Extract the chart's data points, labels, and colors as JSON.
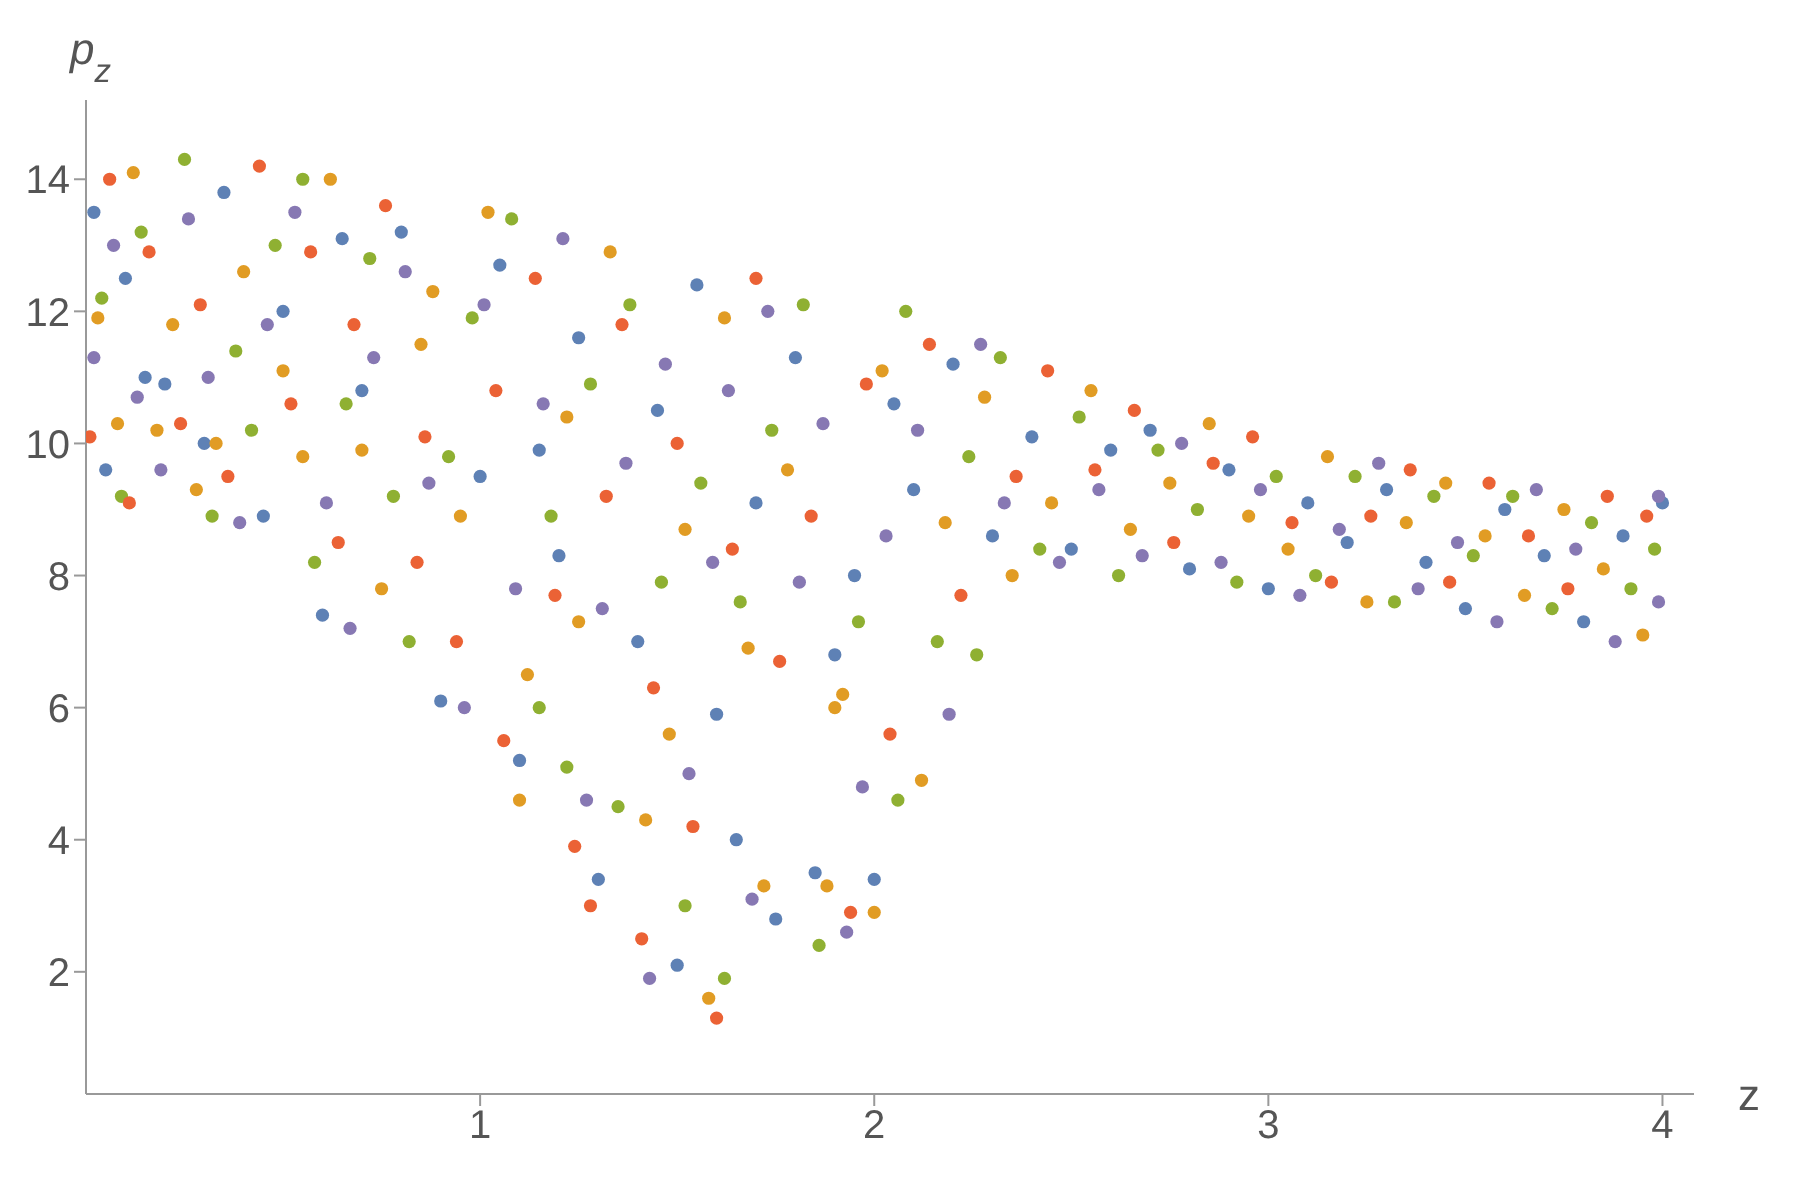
{
  "chart_data": {
    "type": "scatter",
    "xlabel": "z",
    "ylabel": "p$_{z}$",
    "xlim": [
      0,
      4.08
    ],
    "ylim": [
      0.15,
      15.2
    ],
    "xticks": [
      1,
      2,
      3,
      4
    ],
    "yticks": [
      2,
      4,
      6,
      8,
      10,
      12,
      14
    ],
    "grid": false,
    "legend": false,
    "marker": "circle",
    "series": [
      {
        "color": "#5e81b5",
        "x": [
          0.02,
          0.05,
          0.1,
          0.15,
          0.3,
          0.35,
          0.45,
          0.5,
          0.6,
          0.7,
          0.8,
          0.9,
          1.0,
          1.05,
          1.1,
          1.2,
          1.25,
          1.3,
          1.4,
          1.45,
          1.5,
          1.55,
          1.6,
          1.7,
          1.75,
          1.8,
          1.9,
          1.95,
          2.0,
          2.05,
          2.1,
          2.2,
          2.3,
          2.4,
          2.5,
          2.6,
          2.7,
          2.8,
          2.9,
          3.0,
          3.1,
          3.2,
          3.3,
          3.4,
          3.5,
          3.6,
          3.7,
          3.8,
          3.9,
          4.0,
          0.2,
          0.65,
          1.15,
          1.65,
          1.85
        ],
        "values": [
          13.5,
          9.6,
          12.5,
          11.0,
          10.0,
          13.8,
          8.9,
          12.0,
          7.4,
          10.8,
          13.2,
          6.1,
          9.5,
          12.7,
          5.2,
          8.3,
          11.6,
          3.4,
          7.0,
          10.5,
          2.1,
          12.4,
          5.9,
          9.1,
          2.8,
          11.3,
          6.8,
          8.0,
          3.4,
          10.6,
          9.3,
          11.2,
          8.6,
          10.1,
          8.4,
          9.9,
          10.2,
          8.1,
          9.6,
          7.8,
          9.1,
          8.5,
          9.3,
          8.2,
          7.5,
          9.0,
          8.3,
          7.3,
          8.6,
          9.1,
          10.9,
          13.1,
          9.9,
          4.0,
          3.5
        ]
      },
      {
        "color": "#e19c24",
        "x": [
          0.03,
          0.08,
          0.12,
          0.18,
          0.22,
          0.28,
          0.4,
          0.55,
          0.62,
          0.75,
          0.85,
          0.95,
          1.02,
          1.12,
          1.22,
          1.33,
          1.42,
          1.52,
          1.58,
          1.68,
          1.72,
          1.78,
          1.88,
          1.92,
          2.02,
          2.12,
          2.18,
          2.28,
          2.35,
          2.45,
          2.55,
          2.65,
          2.75,
          2.85,
          2.95,
          3.05,
          3.15,
          3.25,
          3.35,
          3.45,
          3.55,
          3.65,
          3.75,
          3.85,
          3.95,
          0.33,
          0.5,
          0.88,
          1.25,
          1.48,
          1.62,
          2.0,
          0.7,
          1.1,
          1.9
        ],
        "values": [
          11.9,
          10.3,
          14.1,
          10.2,
          11.8,
          9.3,
          12.6,
          9.8,
          14.0,
          7.8,
          11.5,
          8.9,
          13.5,
          6.5,
          10.4,
          12.9,
          4.3,
          8.7,
          1.6,
          6.9,
          3.3,
          9.6,
          3.3,
          6.2,
          11.1,
          4.9,
          8.8,
          10.7,
          8.0,
          9.1,
          10.8,
          8.7,
          9.4,
          10.3,
          8.9,
          8.4,
          9.8,
          7.6,
          8.8,
          9.4,
          8.6,
          7.7,
          9.0,
          8.1,
          7.1,
          10.0,
          11.1,
          12.3,
          7.3,
          5.6,
          11.9,
          2.9,
          9.9,
          4.6,
          6.0
        ]
      },
      {
        "color": "#8fb032",
        "x": [
          0.04,
          0.09,
          0.14,
          0.25,
          0.32,
          0.38,
          0.48,
          0.58,
          0.66,
          0.72,
          0.82,
          0.92,
          0.98,
          1.08,
          1.15,
          1.18,
          1.28,
          1.35,
          1.38,
          1.46,
          1.52,
          1.56,
          1.62,
          1.66,
          1.74,
          1.82,
          1.86,
          1.96,
          2.06,
          2.08,
          2.16,
          2.24,
          2.32,
          2.42,
          2.52,
          2.62,
          2.72,
          2.82,
          2.92,
          3.02,
          3.12,
          3.22,
          3.32,
          3.42,
          3.52,
          3.62,
          3.72,
          3.82,
          3.92,
          3.98,
          0.42,
          0.78,
          1.22,
          2.26,
          0.55
        ],
        "values": [
          12.2,
          9.2,
          13.2,
          14.3,
          8.9,
          11.4,
          13.0,
          8.2,
          10.6,
          12.8,
          7.0,
          9.8,
          11.9,
          13.4,
          6.0,
          8.9,
          10.9,
          4.5,
          12.1,
          7.9,
          3.0,
          9.4,
          1.9,
          7.6,
          10.2,
          12.1,
          2.4,
          7.3,
          4.6,
          12.0,
          7.0,
          9.8,
          11.3,
          8.4,
          10.4,
          8.0,
          9.9,
          9.0,
          7.9,
          9.5,
          8.0,
          9.5,
          7.6,
          9.2,
          8.3,
          9.2,
          7.5,
          8.8,
          7.8,
          8.4,
          10.2,
          9.2,
          5.1,
          6.8,
          14.0
        ]
      },
      {
        "color": "#eb6235",
        "x": [
          0.01,
          0.06,
          0.11,
          0.16,
          0.24,
          0.29,
          0.36,
          0.44,
          0.52,
          0.57,
          0.64,
          0.68,
          0.76,
          0.84,
          0.86,
          0.94,
          1.04,
          1.06,
          1.14,
          1.19,
          1.24,
          1.32,
          1.36,
          1.41,
          1.44,
          1.5,
          1.54,
          1.6,
          1.64,
          1.76,
          1.84,
          1.94,
          1.98,
          2.04,
          2.14,
          2.22,
          2.36,
          2.44,
          2.56,
          2.66,
          2.76,
          2.86,
          2.96,
          3.06,
          3.16,
          3.26,
          3.36,
          3.46,
          3.56,
          3.66,
          3.76,
          3.86,
          3.96,
          1.7,
          1.28
        ],
        "values": [
          10.1,
          14.0,
          9.1,
          12.9,
          10.3,
          12.1,
          9.5,
          14.2,
          10.6,
          12.9,
          8.5,
          11.8,
          13.6,
          8.2,
          10.1,
          7.0,
          10.8,
          5.5,
          12.5,
          7.7,
          3.9,
          9.2,
          11.8,
          2.5,
          6.3,
          10.0,
          4.2,
          1.3,
          8.4,
          6.7,
          8.9,
          2.9,
          10.9,
          5.6,
          11.5,
          7.7,
          9.5,
          11.1,
          9.6,
          10.5,
          8.5,
          9.7,
          10.1,
          8.8,
          7.9,
          8.9,
          9.6,
          7.9,
          9.4,
          8.6,
          7.8,
          9.2,
          8.9,
          12.5,
          3.0
        ]
      },
      {
        "color": "#8778b3",
        "x": [
          0.02,
          0.07,
          0.13,
          0.19,
          0.26,
          0.31,
          0.39,
          0.46,
          0.53,
          0.61,
          0.67,
          0.73,
          0.81,
          0.87,
          0.96,
          1.01,
          1.09,
          1.16,
          1.21,
          1.27,
          1.31,
          1.37,
          1.43,
          1.47,
          1.53,
          1.59,
          1.63,
          1.69,
          1.73,
          1.81,
          1.87,
          1.93,
          1.97,
          2.03,
          2.11,
          2.19,
          2.27,
          2.33,
          2.47,
          2.57,
          2.68,
          2.78,
          2.88,
          2.98,
          3.08,
          3.18,
          3.28,
          3.38,
          3.48,
          3.58,
          3.68,
          3.78,
          3.88,
          3.99,
          3.99
        ],
        "values": [
          11.3,
          13.0,
          10.7,
          9.6,
          13.4,
          11.0,
          8.8,
          11.8,
          13.5,
          9.1,
          7.2,
          11.3,
          12.6,
          9.4,
          6.0,
          12.1,
          7.8,
          10.6,
          13.1,
          4.6,
          7.5,
          9.7,
          1.9,
          11.2,
          5.0,
          8.2,
          10.8,
          3.1,
          12.0,
          7.9,
          10.3,
          2.6,
          4.8,
          8.6,
          10.2,
          5.9,
          11.5,
          9.1,
          8.2,
          9.3,
          8.3,
          10.0,
          8.2,
          9.3,
          7.7,
          8.7,
          9.7,
          7.8,
          8.5,
          7.3,
          9.3,
          8.4,
          7.0,
          9.2,
          7.6
        ]
      }
    ]
  }
}
